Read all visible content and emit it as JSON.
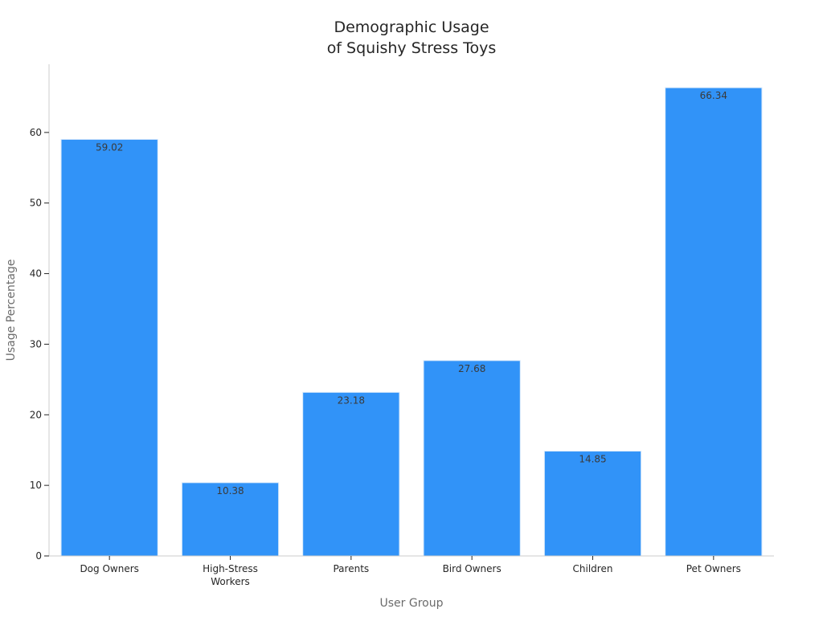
{
  "chart_data": {
    "type": "bar",
    "title_lines": [
      "Demographic Usage",
      "of Squishy Stress Toys"
    ],
    "xlabel": "User Group",
    "ylabel": "Usage Percentage",
    "categories": [
      [
        "Dog Owners"
      ],
      [
        "High-Stress",
        "Workers"
      ],
      [
        "Parents"
      ],
      [
        "Bird Owners"
      ],
      [
        "Children"
      ],
      [
        "Pet Owners"
      ]
    ],
    "values": [
      59.02,
      10.38,
      23.18,
      27.68,
      14.85,
      66.34
    ],
    "value_labels": [
      "59.02",
      "10.38",
      "23.18",
      "27.68",
      "14.85",
      "66.34"
    ],
    "yticks": [
      0,
      10,
      20,
      30,
      40,
      50,
      60
    ],
    "ytick_labels": [
      "0",
      "10",
      "20",
      "30",
      "40",
      "50",
      "60"
    ],
    "ylim": [
      0,
      69.66
    ],
    "bar_color": "#3193f8",
    "bar_edge_color": "#d8e9fb",
    "grid": false,
    "legend": "none"
  }
}
